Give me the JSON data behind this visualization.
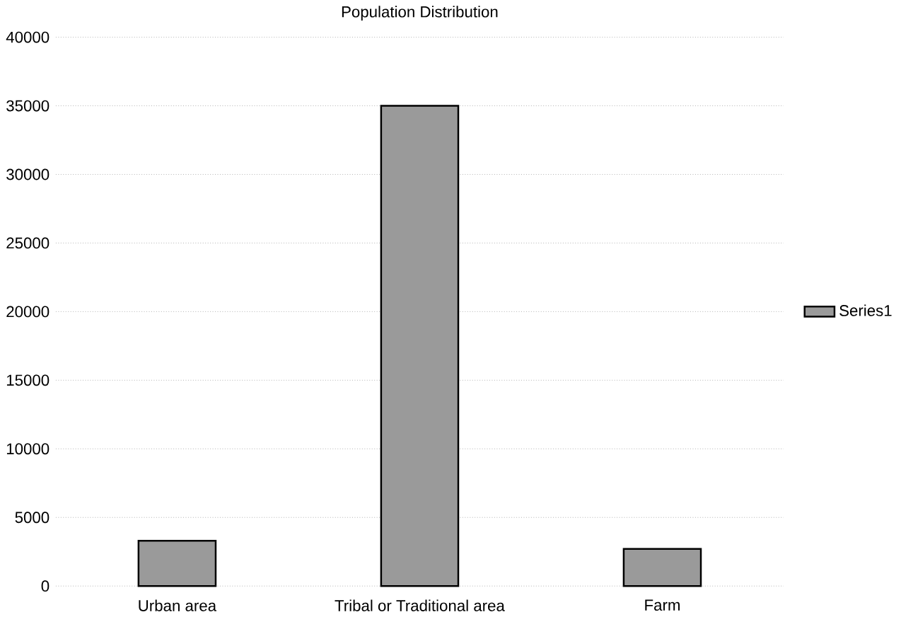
{
  "chart_data": {
    "type": "bar",
    "title": "Population Distribution",
    "categories": [
      "Urban area",
      "Tribal or Traditional area",
      "Farm"
    ],
    "series": [
      {
        "name": "Series1",
        "color": "#9a9a9a",
        "values": [
          3300,
          35000,
          2700
        ]
      }
    ],
    "ylim": [
      0,
      40000
    ],
    "yticks": [
      0,
      5000,
      10000,
      15000,
      20000,
      25000,
      30000,
      35000,
      40000
    ],
    "grid": "y",
    "legend": "right"
  }
}
